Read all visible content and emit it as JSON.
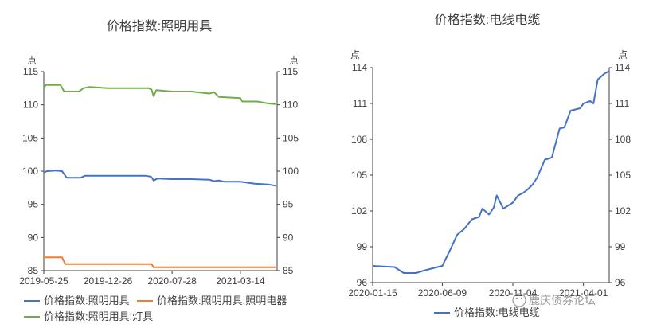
{
  "chart_data": [
    {
      "type": "line",
      "title": "价格指数:照明用具",
      "left_axis_unit": "点",
      "right_axis_unit": "点",
      "x_tick_labels": [
        "2019-05-25",
        "2019-12-26",
        "2020-07-28",
        "2021-03-14"
      ],
      "x_ticks": [
        "2019-05-25",
        "2019-12-26",
        "2020-07-28",
        "2021-03-14"
      ],
      "xlim": [
        "2019-05-25",
        "2021-07-15"
      ],
      "left_ylim": [
        85,
        115
      ],
      "left_yticks": [
        85,
        90,
        95,
        100,
        105,
        110,
        115
      ],
      "right_ylim": [
        85,
        115
      ],
      "right_yticks": [
        85,
        90,
        95,
        100,
        105,
        110,
        115
      ],
      "legend_position": "bottom",
      "series": [
        {
          "name": "价格指数:照明用具",
          "color": "#4472C4",
          "axis": "left",
          "x": [
            "2019-05-25",
            "2019-06-05",
            "2019-07-05",
            "2019-07-25",
            "2019-08-10",
            "2019-09-25",
            "2019-10-10",
            "2019-12-26",
            "2020-03-01",
            "2020-05-01",
            "2020-05-15",
            "2020-05-20",
            "2020-05-27",
            "2020-06-10",
            "2020-07-28",
            "2020-10-01",
            "2020-12-01",
            "2020-12-15",
            "2021-01-01",
            "2021-01-20",
            "2021-03-14",
            "2021-05-01",
            "2021-06-15",
            "2021-07-10"
          ],
          "values": [
            99.8,
            100.0,
            100.1,
            100.0,
            99.0,
            99.0,
            99.3,
            99.3,
            99.3,
            99.3,
            99.2,
            99.1,
            98.6,
            98.9,
            98.8,
            98.8,
            98.7,
            98.5,
            98.6,
            98.4,
            98.4,
            98.1,
            98.0,
            97.8
          ]
        },
        {
          "name": "价格指数:照明用具:照明电器",
          "color": "#ED7D31",
          "axis": "right",
          "x": [
            "2019-05-25",
            "2019-07-25",
            "2019-08-05",
            "2020-05-20",
            "2020-05-27",
            "2021-07-10"
          ],
          "values": [
            87.0,
            87.0,
            86.0,
            86.0,
            85.5,
            85.5
          ]
        },
        {
          "name": "价格指数:照明用具:灯具",
          "color": "#70AD47",
          "axis": "right",
          "x": [
            "2019-05-25",
            "2019-06-01",
            "2019-06-10",
            "2019-07-20",
            "2019-08-01",
            "2019-09-20",
            "2019-10-05",
            "2019-10-25",
            "2019-12-26",
            "2020-03-01",
            "2020-05-10",
            "2020-05-20",
            "2020-05-27",
            "2020-06-05",
            "2020-07-28",
            "2020-10-01",
            "2020-11-10",
            "2020-12-01",
            "2020-12-15",
            "2021-01-01",
            "2021-03-14",
            "2021-03-20",
            "2021-05-10",
            "2021-06-15",
            "2021-07-10"
          ],
          "values": [
            112.5,
            113.0,
            113.0,
            113.0,
            112.0,
            112.0,
            112.5,
            112.7,
            112.5,
            112.5,
            112.5,
            112.3,
            111.3,
            112.2,
            112.0,
            112.0,
            111.8,
            111.7,
            111.9,
            111.2,
            111.0,
            110.5,
            110.5,
            110.2,
            110.1
          ]
        }
      ]
    },
    {
      "type": "line",
      "title": "价格指数:电线电缆",
      "left_axis_unit": "点",
      "right_axis_unit": "点",
      "x_tick_labels": [
        "2020-01-15",
        "2020-06-09",
        "2020-11-04",
        "2021-04-01"
      ],
      "x_ticks": [
        "2020-01-15",
        "2020-06-09",
        "2020-11-04",
        "2021-04-01"
      ],
      "xlim": [
        "2020-01-15",
        "2021-05-25"
      ],
      "left_ylim": [
        96,
        114
      ],
      "left_yticks": [
        96,
        99,
        102,
        105,
        108,
        111,
        114
      ],
      "right_ylim": [
        96,
        114
      ],
      "right_yticks": [
        96,
        99,
        102,
        105,
        108,
        111,
        114
      ],
      "legend_position": "bottom",
      "series": [
        {
          "name": "价格指数:电线电缆",
          "color": "#4472C4",
          "axis": "left",
          "x": [
            "2020-01-15",
            "2020-03-01",
            "2020-03-20",
            "2020-04-15",
            "2020-05-01",
            "2020-05-20",
            "2020-06-09",
            "2020-06-25",
            "2020-07-10",
            "2020-07-25",
            "2020-08-10",
            "2020-08-25",
            "2020-09-01",
            "2020-09-15",
            "2020-09-25",
            "2020-10-01",
            "2020-10-15",
            "2020-11-04",
            "2020-11-15",
            "2020-11-25",
            "2020-12-05",
            "2020-12-15",
            "2020-12-25",
            "2021-01-10",
            "2021-01-20",
            "2021-01-25",
            "2021-02-10",
            "2021-02-20",
            "2021-03-05",
            "2021-03-15",
            "2021-03-25",
            "2021-04-01",
            "2021-04-15",
            "2021-04-22",
            "2021-05-01",
            "2021-05-15",
            "2021-05-25"
          ],
          "values": [
            97.4,
            97.3,
            96.8,
            96.8,
            97.0,
            97.2,
            97.4,
            98.7,
            100.0,
            100.5,
            101.3,
            101.5,
            102.2,
            101.7,
            102.3,
            103.3,
            102.2,
            102.7,
            103.3,
            103.5,
            103.8,
            104.2,
            104.8,
            106.3,
            106.4,
            106.5,
            108.9,
            109.0,
            110.4,
            110.5,
            110.6,
            111.0,
            111.2,
            111.0,
            113.0,
            113.5,
            113.7
          ]
        }
      ]
    }
  ],
  "watermark": "鹿庆债券论坛"
}
